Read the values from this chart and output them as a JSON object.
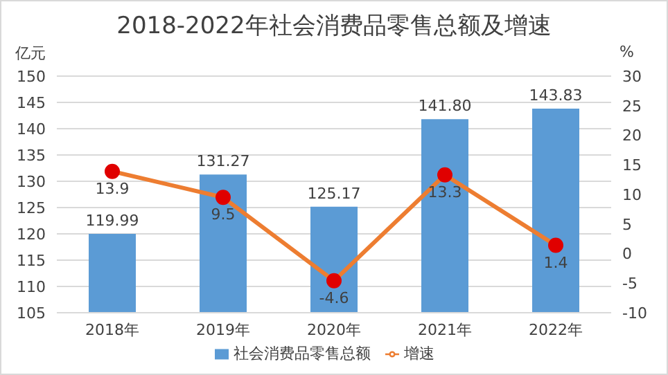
{
  "chart_data": {
    "type": "bar",
    "title": "2018-2022年社会消费品零售总额及增速",
    "ylabel": "亿元",
    "y2label": "%",
    "categories": [
      "2018年",
      "2019年",
      "2020年",
      "2021年",
      "2022年"
    ],
    "series": [
      {
        "name": "社会消费品零售总额",
        "color": "#5b9bd5",
        "values": [
          119.99,
          131.27,
          125.17,
          141.8,
          143.83
        ],
        "value_labels": [
          "119.99",
          "131.27",
          "125.17",
          "141.80",
          "143.83"
        ]
      },
      {
        "name": "增速",
        "type": "line",
        "axis": "y2",
        "color": "#ed7d31",
        "values": [
          13.9,
          9.5,
          -4.6,
          13.3,
          1.4
        ],
        "value_labels": [
          "13.9",
          "9.5",
          "-4.6",
          "13.3",
          "1.4"
        ]
      }
    ],
    "ylim": [
      105,
      150
    ],
    "yticks": [
      105,
      110,
      115,
      120,
      125,
      130,
      135,
      140,
      145,
      150
    ],
    "y2lim": [
      -10,
      30
    ],
    "y2ticks": [
      -10,
      -5,
      0,
      5,
      10,
      15,
      20,
      25,
      30
    ],
    "grid": "y",
    "legend": "bottom",
    "marker": "circle",
    "line_style": "solid"
  }
}
